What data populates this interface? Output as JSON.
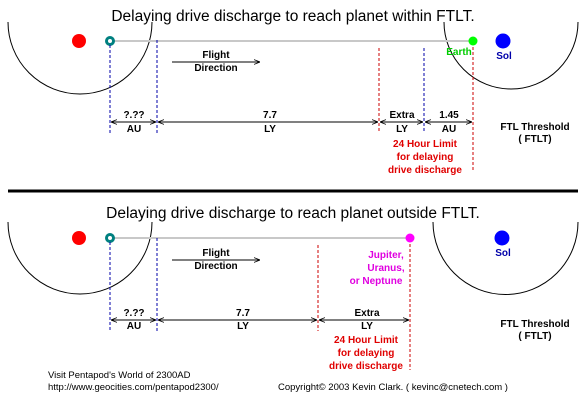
{
  "colors": {
    "origin_star": "#ff0000",
    "teal_ship": "#008080",
    "earth": "#00ff00",
    "earth_label": "#00cc00",
    "sol": "#0000ff",
    "jupiter": "#ff00ff",
    "limit_text": "#e00000",
    "guide_blue": "#0000aa",
    "guide_red": "#cc0000",
    "track": "#c8c8c8"
  },
  "top": {
    "title": "Delaying drive discharge to reach planet within FTLT.",
    "flight_direction": [
      "Flight",
      "Direction"
    ],
    "planet_label": "Earth",
    "sol_label": "Sol",
    "seg_au_unknown": {
      "value": "?.??",
      "unit": "AU"
    },
    "seg_ly": {
      "value": "7.7",
      "unit": "LY"
    },
    "seg_extra": {
      "value": "Extra",
      "unit": "LY"
    },
    "seg_au_known": {
      "value": "1.45",
      "unit": "AU"
    },
    "ftl_threshold": [
      "FTL Threshold",
      "( FTLT)"
    ],
    "limit_text": [
      "24 Hour Limit",
      "for delaying",
      "drive discharge"
    ]
  },
  "bottom": {
    "title": "Delaying drive discharge to reach planet outside FTLT.",
    "flight_direction": [
      "Flight",
      "Direction"
    ],
    "planet_label": [
      "Jupiter,",
      "Uranus,",
      "or Neptune"
    ],
    "sol_label": "Sol",
    "seg_au_unknown": {
      "value": "?.??",
      "unit": "AU"
    },
    "seg_ly": {
      "value": "7.7",
      "unit": "LY"
    },
    "seg_extra": {
      "value": "Extra",
      "unit": "LY"
    },
    "ftl_threshold": [
      "FTL Threshold",
      "( FTLT)"
    ],
    "limit_text": [
      "24 Hour Limit",
      "for delaying",
      "drive discharge"
    ]
  },
  "footer": {
    "visit_text": "Visit Pentapod's World of 2300AD",
    "url": "http://www.geocities.com/pentapod2300/",
    "copyright": "Copyright© 2003 Kevin Clark. ( kevinc@cnetech.com )"
  }
}
